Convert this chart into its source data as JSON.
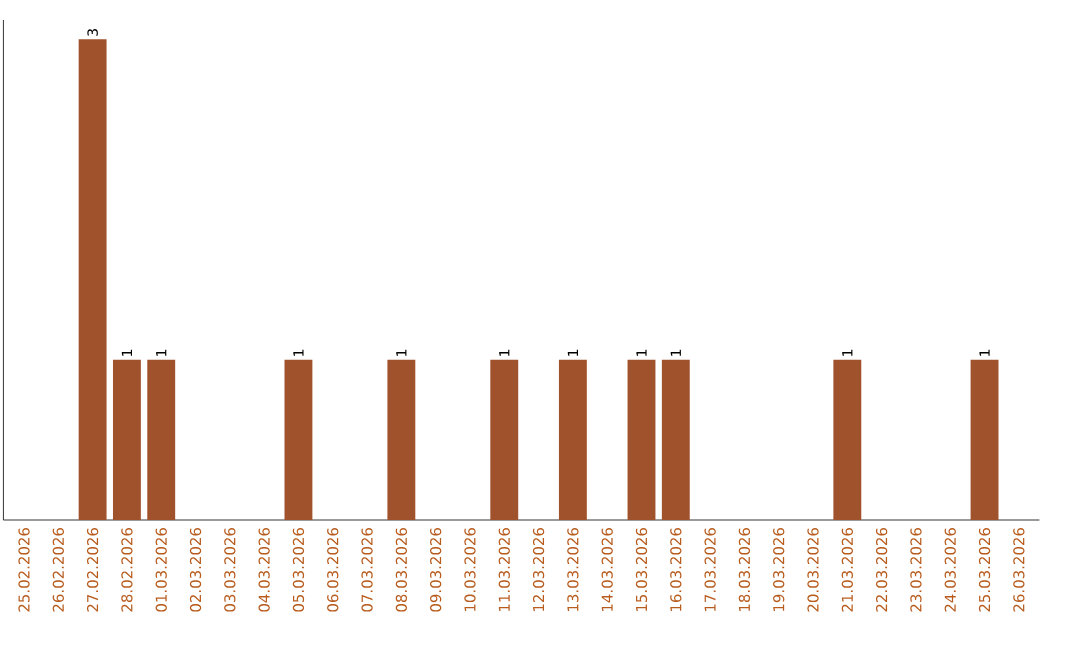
{
  "chart_data": {
    "type": "bar",
    "categories": [
      "25.02.2026",
      "26.02.2026",
      "27.02.2026",
      "28.02.2026",
      "01.03.2026",
      "02.03.2026",
      "03.03.2026",
      "04.03.2026",
      "05.03.2026",
      "06.03.2026",
      "07.03.2026",
      "08.03.2026",
      "09.03.2026",
      "10.03.2026",
      "11.03.2026",
      "12.03.2026",
      "13.03.2026",
      "14.03.2026",
      "15.03.2026",
      "16.03.2026",
      "17.03.2026",
      "18.03.2026",
      "19.03.2026",
      "20.03.2026",
      "21.03.2026",
      "22.03.2026",
      "23.03.2026",
      "24.03.2026",
      "25.03.2026",
      "26.03.2026"
    ],
    "values": [
      0,
      0,
      3,
      1,
      1,
      0,
      0,
      0,
      1,
      0,
      0,
      1,
      0,
      0,
      1,
      0,
      1,
      0,
      1,
      1,
      0,
      0,
      0,
      0,
      1,
      0,
      0,
      0,
      1,
      0
    ],
    "value_labels": [
      null,
      null,
      "3",
      "1",
      "1",
      null,
      null,
      null,
      "1",
      null,
      null,
      "1",
      null,
      null,
      "1",
      null,
      "1",
      null,
      "1",
      "1",
      null,
      null,
      null,
      null,
      "1",
      null,
      null,
      null,
      "1",
      null
    ],
    "color": "#a0522d"
  }
}
